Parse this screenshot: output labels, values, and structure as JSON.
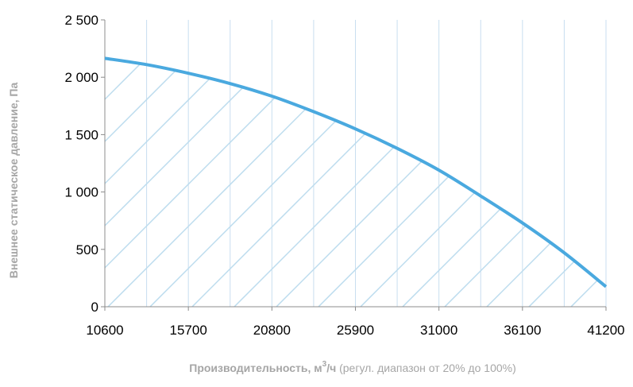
{
  "chart_data": {
    "type": "area",
    "x_ticks": [
      "10600",
      "15700",
      "20800",
      "25900",
      "31000",
      "36100",
      "41200"
    ],
    "y_ticks": [
      "0",
      "500",
      "1 000",
      "1 500",
      "2 000",
      "2 500"
    ],
    "xlim": [
      10600,
      41200
    ],
    "ylim": [
      0,
      2500
    ],
    "grid": "vertical",
    "fill": "diagonal-hatch",
    "series": [
      {
        "x": [
          10600,
          13150,
          15700,
          18250,
          20800,
          23350,
          25900,
          28450,
          31000,
          33550,
          36100,
          38650,
          41200
        ],
        "y": [
          2165,
          2110,
          2035,
          1945,
          1835,
          1700,
          1550,
          1380,
          1190,
          965,
          730,
          470,
          175
        ]
      }
    ],
    "ylabel": "Внешнее статическое давление, Па",
    "xlabel_bold": "Производительность, м",
    "xlabel_sup": "3",
    "xlabel_bold_tail": "/ч",
    "xlabel_rest": " (регул. диапазон от 20% до 100%)"
  },
  "colors": {
    "line": "#4aa9df",
    "hatch": "#bcdcee",
    "grid": "#c8def0",
    "axis": "#8c8c8c",
    "axis_title": "#a6a6a6",
    "tick_text": "#000000"
  }
}
